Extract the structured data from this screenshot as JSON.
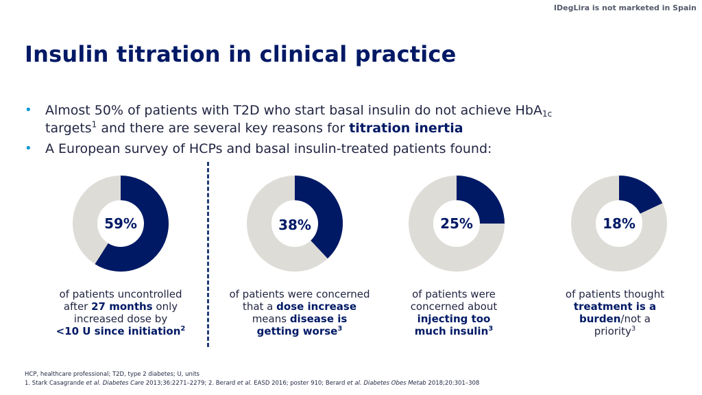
{
  "disclaimer": "IDegLira is not marketed in Spain",
  "title": "Insulin titration in clinical practice",
  "bullets": [
    {
      "pre": "Almost 50% of patients with T2D who start basal insulin do not achieve HbA",
      "sub": "1c",
      "line2": "targets",
      "sup": "1",
      "mid": " and there are several key reasons for ",
      "bold": "titration inertia"
    },
    {
      "text": "A European survey of HCPs and basal insulin-treated patients found:"
    }
  ],
  "colors": {
    "navy": "#001965",
    "grey": "#dedcd7",
    "bullet": "#0097d7"
  },
  "chart_data": {
    "type": "pie",
    "variant": "donut",
    "values": [
      59,
      38,
      25,
      18
    ],
    "labels": [
      "59%",
      "38%",
      "25%",
      "18%"
    ]
  },
  "captions": [
    {
      "t1": "of patients uncontrolled",
      "t2": "after ",
      "b1": "27 months",
      "t3": " only",
      "t4": "increased dose by",
      "b2": "<10 U since initiation",
      "sup": "2"
    },
    {
      "t1": "of patients were concerned",
      "t2": "that a ",
      "b1": "dose increase",
      "t3": "means ",
      "b2": "disease is",
      "b3": "getting worse",
      "sup": "3"
    },
    {
      "t1": "of patients were",
      "t2": "concerned about",
      "b1": "injecting too",
      "b2": "much insulin",
      "sup": "3"
    },
    {
      "t1": "of patients thought",
      "b1": "treatment is a",
      "b2": "burden",
      "t2": "/not a",
      "t3": "priority",
      "sup": "3"
    }
  ],
  "footnotes": {
    "line1": "HCP, healthcare professional; T2D, type 2 diabetes; U, units",
    "line2_a": "1. Stark Casagrande ",
    "line2_etal1": "et al.",
    "line2_j1": " Diabetes Care",
    "line2_b": " 2013;36:2271–2279; 2. Berard ",
    "line2_etal2": "et al.",
    "line2_c": " EASD 2016; poster 910; Berard ",
    "line2_etal3": "et al.",
    "line2_j3": " Diabetes Obes Metab",
    "line2_d": " 2018;20:301–308"
  }
}
